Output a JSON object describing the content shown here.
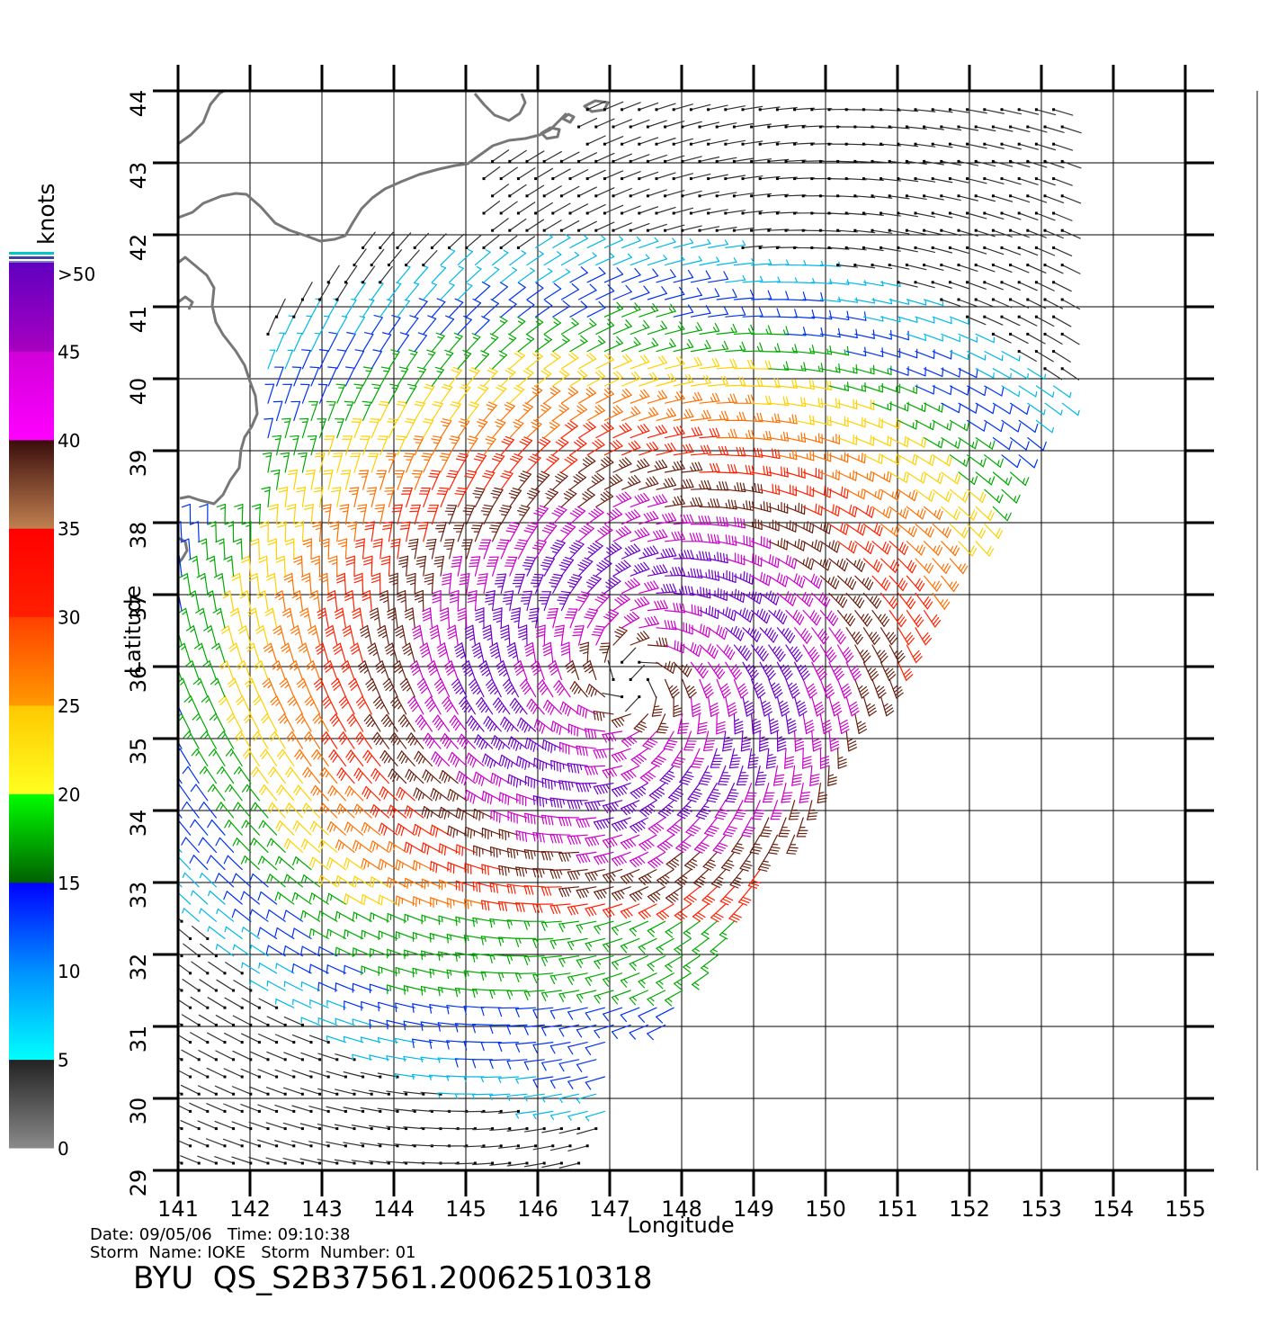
{
  "map": {
    "lon_range": [
      141,
      156
    ],
    "lat_range": [
      29,
      44
    ],
    "lon_ticks": [
      "141",
      "142",
      "143",
      "144",
      "145",
      "146",
      "147",
      "148",
      "149",
      "150",
      "151",
      "152",
      "153",
      "154",
      "155"
    ],
    "lat_ticks": [
      "29",
      "30",
      "31",
      "32",
      "33",
      "34",
      "35",
      "36",
      "37",
      "38",
      "39",
      "40",
      "41",
      "42",
      "43",
      "44"
    ],
    "xlabel": "Longitude",
    "ylabel": "Latitude",
    "storm_center": {
      "lon": 147.3,
      "lat": 35.8
    },
    "coastline_color": "#777777"
  },
  "colorbar": {
    "unit_label": "knots",
    "labels": [
      "0",
      "5",
      "10",
      "15",
      "20",
      "25",
      "30",
      "35",
      "40",
      "45",
      ">50"
    ],
    "segments": [
      {
        "range": "0-5",
        "from": "#8a8a8a",
        "to": "#222222"
      },
      {
        "range": "5-10",
        "from": "#00ffff",
        "to": "#0090ff"
      },
      {
        "range": "10-15",
        "from": "#0090ff",
        "to": "#0000ff"
      },
      {
        "range": "15-20",
        "from": "#006000",
        "to": "#00ff00"
      },
      {
        "range": "20-25",
        "from": "#ffff20",
        "to": "#ffc800"
      },
      {
        "range": "25-30",
        "from": "#ff9a00",
        "to": "#ff4000"
      },
      {
        "range": "30-35",
        "from": "#ff2000",
        "to": "#ff0000"
      },
      {
        "range": "35-40",
        "from": "#c08050",
        "to": "#3a0c0c"
      },
      {
        "range": "40-45",
        "from": "#ff00ff",
        "to": "#d000d8"
      },
      {
        "range": "45-50",
        "from": "#a800c0",
        "to": "#6000c0"
      }
    ]
  },
  "info": {
    "line1": "Date: 09/05/06   Time: 09:10:38",
    "line2": "Storm  Name: IOKE   Storm  Number: 01",
    "title": "BYU  QS_S2B37561.20062510318"
  }
}
